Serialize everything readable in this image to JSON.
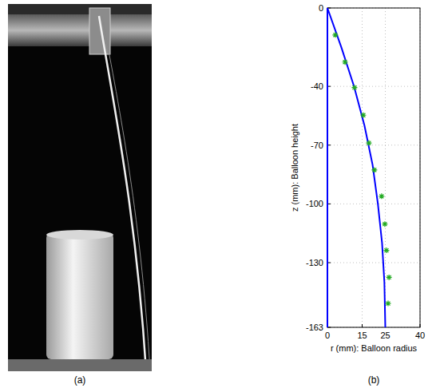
{
  "captions": {
    "a": "(a)",
    "b": "(b)"
  },
  "chart_data": {
    "type": "line",
    "x_label": "r (mm): Balloon radius",
    "y_label": "z (mm): Balloon height",
    "xlim": [
      0,
      40
    ],
    "xticks": [
      0,
      15,
      25,
      40
    ],
    "ylim": [
      -163,
      0
    ],
    "yticks": [
      0,
      -40,
      -70,
      -100,
      -130,
      -163
    ],
    "grid": true,
    "series": [
      {
        "type": "line",
        "color": "#0000ff",
        "line_style": "solid",
        "x": [
          0,
          6,
          11.5,
          16,
          19.5,
          21.8,
          23.6,
          24.6,
          25
        ],
        "values": [
          0,
          -20,
          -40,
          -60,
          -80,
          -100,
          -120,
          -140,
          -163
        ]
      },
      {
        "type": "scatter",
        "color": "#22aa22",
        "marker": "asterisk",
        "x": [
          3.4,
          7.6,
          11.7,
          15.5,
          17.9,
          20.3,
          23.4,
          24.8,
          25.5,
          26.6,
          26.2
        ],
        "values": [
          -13.8,
          -27.6,
          -40.6,
          -54.7,
          -68.9,
          -82.7,
          -96.1,
          -110.3,
          -123.7,
          -137.5,
          -150.8
        ]
      }
    ]
  }
}
